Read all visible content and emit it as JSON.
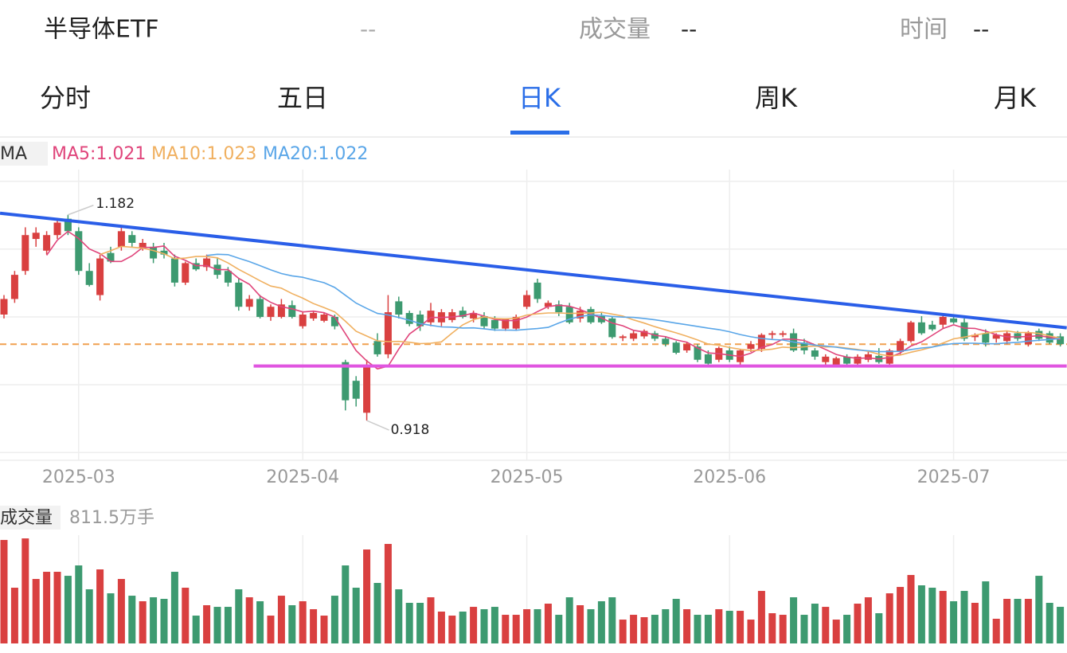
{
  "header": {
    "title": "半导体ETF",
    "price": "--",
    "volume_label": "成交量",
    "volume": "--",
    "time_label": "时间",
    "time": "--"
  },
  "tabs": {
    "items": [
      "分时",
      "五日",
      "日K",
      "周K",
      "月K"
    ],
    "active": 2
  },
  "ma_legend": {
    "label": "MA",
    "items": [
      {
        "name": "MA5:1.021",
        "period": 5,
        "color": "#e0457b"
      },
      {
        "name": "MA10:1.023",
        "period": 10,
        "color": "#f0b060"
      },
      {
        "name": "MA20:1.022",
        "period": 20,
        "color": "#5aa6e8"
      }
    ]
  },
  "chart_data": [
    {
      "type": "candlestick",
      "up_color": "#d94040",
      "down_color": "#3d9a70",
      "ylim": [
        0.867,
        1.24
      ],
      "yticks": [
        1.225,
        1.138,
        1.051,
        0.964,
        0.877
      ],
      "grid": true,
      "price_line": 1.016,
      "price_line_color": "#f0a050",
      "lines": [
        {
          "color": "#2a5ee8",
          "from": [
            -0.37,
            1.184
          ],
          "to": [
            99.6,
            1.037
          ]
        },
        {
          "color": "#e055e0",
          "from": [
            23.4,
            0.988
          ],
          "to": [
            99.6,
            0.988
          ]
        }
      ],
      "categories": [
        null,
        null,
        null,
        null,
        null,
        null,
        null,
        "2025-03",
        null,
        null,
        null,
        null,
        null,
        null,
        null,
        null,
        null,
        null,
        null,
        null,
        null,
        null,
        null,
        null,
        null,
        null,
        null,
        null,
        "2025-04",
        null,
        null,
        null,
        null,
        null,
        null,
        null,
        null,
        null,
        null,
        null,
        null,
        null,
        null,
        null,
        null,
        null,
        null,
        null,
        null,
        "2025-05",
        null,
        null,
        null,
        null,
        null,
        null,
        null,
        null,
        null,
        null,
        null,
        null,
        null,
        null,
        null,
        null,
        null,
        null,
        "2025-06",
        null,
        null,
        null,
        null,
        null,
        null,
        null,
        null,
        null,
        null,
        null,
        null,
        null,
        null,
        null,
        null,
        null,
        null,
        null,
        null,
        "2025-07",
        null,
        null,
        null,
        null,
        null,
        null,
        null,
        null,
        null,
        null,
        null
      ],
      "candles": [
        [
          1.054,
          1.079,
          1.049,
          1.074
        ],
        [
          1.074,
          1.11,
          1.069,
          1.105
        ],
        [
          1.11,
          1.166,
          1.105,
          1.156
        ],
        [
          1.151,
          1.166,
          1.141,
          1.159
        ],
        [
          1.136,
          1.161,
          1.131,
          1.156
        ],
        [
          1.156,
          1.177,
          1.151,
          1.172
        ],
        [
          1.177,
          1.182,
          1.156,
          1.161
        ],
        [
          1.161,
          1.166,
          1.105,
          1.11
        ],
        [
          1.11,
          1.12,
          1.09,
          1.092
        ],
        [
          1.079,
          1.131,
          1.072,
          1.126
        ],
        [
          1.133,
          1.141,
          1.12,
          1.122
        ],
        [
          1.141,
          1.166,
          1.136,
          1.161
        ],
        [
          1.156,
          1.161,
          1.141,
          1.146
        ],
        [
          1.139,
          1.151,
          1.136,
          1.146
        ],
        [
          1.141,
          1.146,
          1.12,
          1.126
        ],
        [
          1.136,
          1.146,
          1.126,
          1.131
        ],
        [
          1.126,
          1.131,
          1.09,
          1.095
        ],
        [
          1.095,
          1.122,
          1.092,
          1.12
        ],
        [
          1.12,
          1.126,
          1.11,
          1.112
        ],
        [
          1.115,
          1.131,
          1.11,
          1.126
        ],
        [
          1.118,
          1.126,
          1.1,
          1.105
        ],
        [
          1.11,
          1.115,
          1.09,
          1.095
        ],
        [
          1.095,
          1.1,
          1.059,
          1.064
        ],
        [
          1.064,
          1.079,
          1.059,
          1.074
        ],
        [
          1.074,
          1.079,
          1.049,
          1.051
        ],
        [
          1.051,
          1.067,
          1.046,
          1.064
        ],
        [
          1.051,
          1.074,
          1.049,
          1.067
        ],
        [
          1.066,
          1.072,
          1.049,
          1.051
        ],
        [
          1.039,
          1.057,
          1.036,
          1.054
        ],
        [
          1.049,
          1.059,
          1.046,
          1.056
        ],
        [
          1.046,
          1.057,
          1.044,
          1.054
        ],
        [
          1.051,
          1.054,
          1.035,
          1.039
        ],
        [
          0.993,
          0.996,
          0.931,
          0.944
        ],
        [
          0.969,
          0.975,
          0.936,
          0.946
        ],
        [
          0.928,
          0.996,
          0.918,
          0.989
        ],
        [
          1.02,
          1.03,
          1.0,
          1.003
        ],
        [
          1.003,
          1.079,
          0.998,
          1.057
        ],
        [
          1.071,
          1.077,
          1.049,
          1.054
        ],
        [
          1.056,
          1.059,
          1.039,
          1.042
        ],
        [
          1.054,
          1.059,
          1.033,
          1.039
        ],
        [
          1.044,
          1.069,
          1.039,
          1.059
        ],
        [
          1.044,
          1.061,
          1.039,
          1.057
        ],
        [
          1.047,
          1.061,
          1.044,
          1.057
        ],
        [
          1.059,
          1.064,
          1.049,
          1.051
        ],
        [
          1.049,
          1.059,
          1.044,
          1.056
        ],
        [
          1.052,
          1.057,
          1.036,
          1.039
        ],
        [
          1.047,
          1.052,
          1.033,
          1.036
        ],
        [
          1.036,
          1.049,
          1.033,
          1.049
        ],
        [
          1.036,
          1.054,
          1.033,
          1.051
        ],
        [
          1.064,
          1.085,
          1.061,
          1.079
        ],
        [
          1.095,
          1.1,
          1.069,
          1.074
        ],
        [
          1.064,
          1.072,
          1.061,
          1.069
        ],
        [
          1.067,
          1.072,
          1.052,
          1.057
        ],
        [
          1.064,
          1.069,
          1.042,
          1.044
        ],
        [
          1.049,
          1.064,
          1.044,
          1.059
        ],
        [
          1.061,
          1.064,
          1.042,
          1.044
        ],
        [
          1.052,
          1.057,
          1.042,
          1.044
        ],
        [
          1.049,
          1.052,
          1.023,
          1.025
        ],
        [
          1.024,
          1.028,
          1.02,
          1.026
        ],
        [
          1.023,
          1.033,
          1.02,
          1.03
        ],
        [
          1.026,
          1.035,
          1.023,
          1.033
        ],
        [
          1.03,
          1.033,
          1.02,
          1.023
        ],
        [
          1.023,
          1.026,
          1.013,
          1.016
        ],
        [
          1.018,
          1.02,
          1.003,
          1.005
        ],
        [
          1.008,
          1.018,
          1.005,
          1.016
        ],
        [
          1.013,
          1.016,
          0.993,
          0.996
        ],
        [
          1.003,
          1.008,
          0.989,
          0.991
        ],
        [
          0.996,
          1.013,
          0.993,
          1.011
        ],
        [
          1.008,
          1.013,
          0.993,
          0.996
        ],
        [
          0.993,
          1.01,
          0.989,
          1.008
        ],
        [
          1.01,
          1.02,
          1.006,
          1.016
        ],
        [
          1.01,
          1.03,
          1.006,
          1.028
        ],
        [
          1.028,
          1.033,
          1.023,
          1.03
        ],
        [
          1.028,
          1.033,
          1.025,
          1.03
        ],
        [
          1.03,
          1.036,
          1.006,
          1.008
        ],
        [
          1.018,
          1.023,
          1.003,
          1.008
        ],
        [
          1.008,
          1.011,
          0.996,
          1.0
        ],
        [
          0.993,
          1.003,
          0.989,
          1.0
        ],
        [
          0.989,
          1.0,
          0.987,
          0.998
        ],
        [
          1.0,
          1.003,
          0.989,
          0.991
        ],
        [
          0.991,
          1.003,
          0.987,
          1.0
        ],
        [
          0.996,
          1.006,
          0.993,
          1.003
        ],
        [
          1.001,
          1.011,
          0.991,
          0.993
        ],
        [
          0.991,
          1.01,
          0.987,
          1.008
        ],
        [
          1.006,
          1.023,
          1.003,
          1.02
        ],
        [
          1.02,
          1.046,
          1.018,
          1.044
        ],
        [
          1.044,
          1.052,
          1.028,
          1.03
        ],
        [
          1.041,
          1.046,
          1.033,
          1.035
        ],
        [
          1.041,
          1.054,
          1.036,
          1.051
        ],
        [
          1.049,
          1.054,
          1.042,
          1.044
        ],
        [
          1.044,
          1.049,
          1.02,
          1.023
        ],
        [
          1.025,
          1.03,
          1.02,
          1.028
        ],
        [
          1.03,
          1.035,
          1.013,
          1.018
        ],
        [
          1.023,
          1.03,
          1.018,
          1.028
        ],
        [
          1.02,
          1.033,
          1.016,
          1.03
        ],
        [
          1.03,
          1.033,
          1.02,
          1.023
        ],
        [
          1.016,
          1.033,
          1.013,
          1.03
        ],
        [
          1.033,
          1.036,
          1.02,
          1.023
        ],
        [
          1.03,
          1.033,
          1.016,
          1.018
        ],
        [
          1.026,
          1.03,
          1.013,
          1.016
        ]
      ]
    },
    {
      "type": "bar",
      "label": "成交量",
      "unit": "万手",
      "ylim": [
        0,
        2400
      ],
      "values": [
        2293,
        1235,
        2328,
        1429,
        1588,
        1588,
        1499,
        1729,
        1200,
        1641,
        1111,
        1429,
        1058,
        935,
        1023,
        988,
        1588,
        1235,
        617,
        847,
        811,
        811,
        1200,
        1023,
        935,
        617,
        1058,
        847,
        935,
        759,
        617,
        1058,
        1729,
        1235,
        2082,
        1341,
        2205,
        1200,
        900,
        900,
        1023,
        706,
        617,
        706,
        811,
        759,
        811,
        635,
        635,
        759,
        759,
        882,
        635,
        1023,
        847,
        759,
        935,
        1023,
        529,
        635,
        582,
        635,
        759,
        988,
        759,
        635,
        635,
        759,
        723,
        723,
        529,
        1164,
        670,
        635,
        1023,
        635,
        882,
        811,
        529,
        635,
        882,
        1023,
        670,
        1111,
        1252,
        1517,
        1288,
        1235,
        1164,
        935,
        1164,
        900,
        1376,
        547,
        988,
        988,
        988,
        1499,
        900,
        811.5
      ]
    }
  ]
}
